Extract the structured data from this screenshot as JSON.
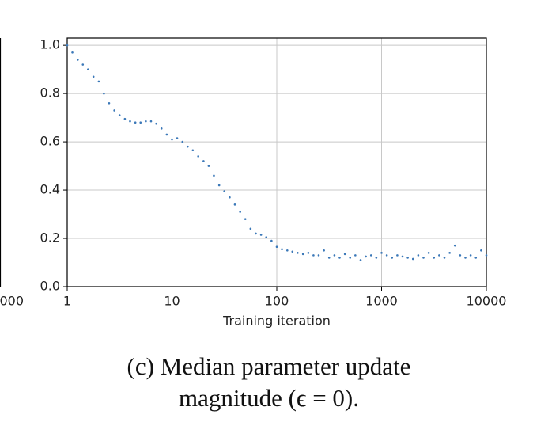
{
  "chart_data": {
    "type": "scatter",
    "xscale": "log",
    "grid": true,
    "color": "#3b78b8",
    "xlabel": "Training iteration",
    "xlim": [
      1,
      10000
    ],
    "xticks": [
      1,
      10,
      100,
      1000,
      10000
    ],
    "ylim": [
      0,
      1.03
    ],
    "yticks": [
      {
        "value": 0,
        "label": "0.0"
      },
      0.2,
      0.4,
      0.6,
      0.8,
      {
        "value": 1,
        "label": "1.0"
      }
    ],
    "x": [
      1,
      1.12,
      1.26,
      1.41,
      1.58,
      1.78,
      2,
      2.24,
      2.51,
      2.82,
      3.16,
      3.55,
      3.98,
      4.47,
      5.01,
      5.62,
      6.31,
      7.08,
      7.94,
      8.91,
      10,
      11.2,
      12.6,
      14.1,
      15.8,
      17.8,
      20,
      22.4,
      25.1,
      28.2,
      31.6,
      35.5,
      39.8,
      44.7,
      50.1,
      56.2,
      63.1,
      70.8,
      79.4,
      89.1,
      100,
      112,
      126,
      141,
      158,
      178,
      200,
      224,
      251,
      282,
      316,
      355,
      398,
      447,
      501,
      562,
      631,
      708,
      794,
      891,
      1000,
      1122,
      1259,
      1413,
      1585,
      1778,
      1995,
      2239,
      2512,
      2818,
      3162,
      3548,
      3981,
      4467,
      5012,
      5623,
      6310,
      7079,
      7943,
      8913,
      10000
    ],
    "values": [
      1.0,
      0.97,
      0.94,
      0.92,
      0.9,
      0.87,
      0.85,
      0.8,
      0.76,
      0.73,
      0.71,
      0.695,
      0.685,
      0.68,
      0.68,
      0.685,
      0.685,
      0.675,
      0.655,
      0.63,
      0.61,
      0.615,
      0.6,
      0.58,
      0.565,
      0.54,
      0.52,
      0.5,
      0.46,
      0.42,
      0.395,
      0.37,
      0.34,
      0.31,
      0.28,
      0.24,
      0.22,
      0.215,
      0.205,
      0.19,
      0.165,
      0.155,
      0.15,
      0.145,
      0.14,
      0.135,
      0.14,
      0.13,
      0.13,
      0.15,
      0.12,
      0.13,
      0.12,
      0.135,
      0.12,
      0.13,
      0.11,
      0.125,
      0.13,
      0.12,
      0.14,
      0.13,
      0.12,
      0.13,
      0.125,
      0.12,
      0.115,
      0.13,
      0.12,
      0.14,
      0.12,
      0.13,
      0.12,
      0.14,
      0.17,
      0.13,
      0.12,
      0.13,
      0.12,
      0.15,
      0.13
    ]
  },
  "neighbor_fragment": {
    "tick_label": "000"
  },
  "caption": [
    "(c) Median parameter update",
    "magnitude (ϵ = 0)."
  ]
}
